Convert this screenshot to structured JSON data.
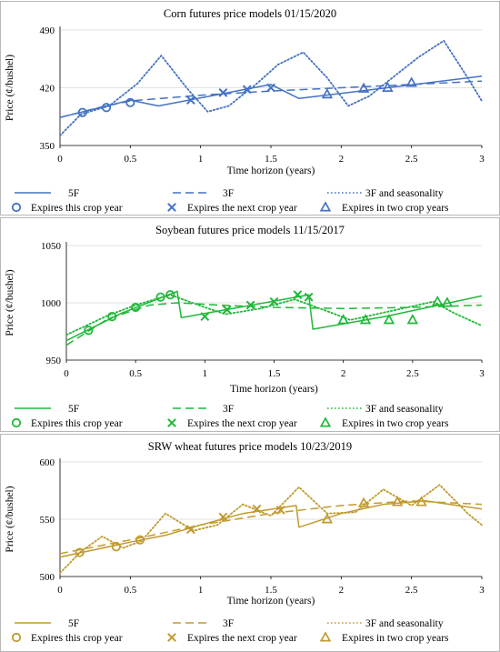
{
  "chart_data": [
    {
      "type": "line",
      "title": "Corn futures price models 01/15/2020",
      "xlabel": "Time horizon (years)",
      "ylabel": "Price (¢/bushel)",
      "xlim": [
        0,
        3
      ],
      "ylim": [
        350,
        490
      ],
      "xticks": [
        "0",
        "0.5",
        "1",
        "1.5",
        "2",
        "2.5",
        "3"
      ],
      "yticks": [
        "350",
        "420",
        "490"
      ],
      "grid": "horizontal",
      "legend": "bottom",
      "color": "#4472c4",
      "series": [
        {
          "name": "5F",
          "style": "solid",
          "x": [
            0,
            0.5,
            0.7,
            1.5,
            1.7,
            3.0
          ],
          "y": [
            384,
            405,
            398,
            424,
            407,
            434
          ]
        },
        {
          "name": "3F",
          "style": "dashed",
          "x": [
            0,
            0.25,
            0.5,
            1.0,
            1.5,
            2.0,
            2.5,
            3.0
          ],
          "y": [
            384,
            395,
            404,
            411,
            416,
            420,
            424,
            428
          ]
        },
        {
          "name": "3F and seasonality",
          "style": "dotted",
          "x": [
            0,
            0.15,
            0.35,
            0.55,
            0.72,
            0.9,
            1.05,
            1.2,
            1.4,
            1.55,
            1.73,
            1.9,
            2.05,
            2.2,
            2.4,
            2.55,
            2.73,
            2.9,
            3.0
          ],
          "y": [
            362,
            388,
            398,
            425,
            459,
            420,
            391,
            398,
            425,
            448,
            463,
            432,
            398,
            410,
            437,
            457,
            477,
            432,
            404
          ]
        },
        {
          "name": "Expires this crop year",
          "marker": "circle",
          "x": [
            0.16,
            0.33,
            0.5
          ],
          "y": [
            390,
            396,
            402
          ]
        },
        {
          "name": "Expires the next crop year",
          "marker": "x",
          "x": [
            0.93,
            1.16,
            1.33,
            1.5
          ],
          "y": [
            405,
            414,
            418,
            420
          ]
        },
        {
          "name": "Expires in two crop years",
          "marker": "triangle",
          "x": [
            1.9,
            2.16,
            2.33,
            2.5
          ],
          "y": [
            412,
            419,
            420,
            426
          ]
        }
      ]
    },
    {
      "type": "line",
      "title": "Soybean futures price models 11/15/2017",
      "xlabel": "Time horizon (years)",
      "ylabel": "Price (¢/bushel)",
      "xlim": [
        0,
        3
      ],
      "ylim": [
        950,
        1050
      ],
      "xticks": [
        "0",
        "0.5",
        "1",
        "1.5",
        "2",
        "2.5",
        "3"
      ],
      "yticks": [
        "950",
        "1000",
        "1050"
      ],
      "grid": "horizontal",
      "legend": "bottom",
      "color": "#1fb838",
      "series": [
        {
          "name": "5F",
          "style": "solid",
          "x": [
            0,
            0.4,
            0.8,
            0.83,
            1.75,
            1.78,
            2.3,
            3.0
          ],
          "y": [
            967,
            991,
            1010,
            987,
            1007,
            977,
            988,
            1006
          ]
        },
        {
          "name": "3F",
          "style": "dashed",
          "x": [
            0,
            0.3,
            0.6,
            0.8,
            1.1,
            1.5,
            2.0,
            2.5,
            3.0
          ],
          "y": [
            963,
            986,
            998,
            1000,
            998,
            996,
            995,
            996,
            998
          ]
        },
        {
          "name": "3F and seasonality",
          "style": "dotted",
          "x": [
            0,
            0.3,
            0.5,
            0.75,
            1.0,
            1.15,
            1.4,
            1.65,
            1.9,
            2.05,
            2.35,
            2.65,
            2.8,
            3.0
          ],
          "y": [
            972,
            989,
            998,
            1007,
            996,
            990,
            995,
            1003,
            992,
            985,
            993,
            1001,
            991,
            980
          ]
        },
        {
          "name": "Expires this crop year",
          "marker": "circle",
          "x": [
            0.16,
            0.33,
            0.5,
            0.68,
            0.75
          ],
          "y": [
            976,
            988,
            996,
            1005,
            1007
          ]
        },
        {
          "name": "Expires the next crop year",
          "marker": "x",
          "x": [
            1.0,
            1.16,
            1.33,
            1.5,
            1.67,
            1.75
          ],
          "y": [
            988,
            994,
            998,
            1001,
            1007,
            1005
          ]
        },
        {
          "name": "Expires in two crop years",
          "marker": "triangle",
          "x": [
            2.0,
            2.16,
            2.33,
            2.5,
            2.68,
            2.75
          ],
          "y": [
            985,
            985,
            985,
            985,
            1001,
            1000
          ]
        }
      ]
    },
    {
      "type": "line",
      "title": "SRW wheat futures price models 10/23/2019",
      "xlabel": "Time horizon (years)",
      "ylabel": "Price (¢/bushel)",
      "xlim": [
        0,
        3
      ],
      "ylim": [
        500,
        600
      ],
      "xticks": [
        "0",
        "0.5",
        "1",
        "1.5",
        "2",
        "2.5",
        "3"
      ],
      "yticks": [
        "500",
        "550",
        "600"
      ],
      "grid": "horizontal",
      "legend": "bottom",
      "color": "#c19a2f",
      "series": [
        {
          "name": "5F",
          "style": "solid",
          "x": [
            0,
            0.5,
            0.75,
            1.0,
            1.3,
            1.68,
            1.7,
            2.0,
            2.3,
            2.6,
            3.0
          ],
          "y": [
            517,
            530,
            536,
            545,
            555,
            562,
            543,
            555,
            563,
            566,
            559
          ]
        },
        {
          "name": "3F",
          "style": "dashed",
          "x": [
            0,
            0.5,
            1.0,
            1.5,
            2.0,
            2.5,
            3.0
          ],
          "y": [
            520,
            532,
            545,
            555,
            562,
            566,
            563
          ]
        },
        {
          "name": "3F and seasonality",
          "style": "dotted",
          "x": [
            0,
            0.15,
            0.3,
            0.45,
            0.58,
            0.75,
            0.95,
            1.12,
            1.3,
            1.5,
            1.7,
            1.9,
            2.1,
            2.3,
            2.5,
            2.7,
            2.9,
            3.0
          ],
          "y": [
            503,
            522,
            535,
            525,
            531,
            555,
            540,
            545,
            563,
            553,
            578,
            555,
            556,
            576,
            562,
            580,
            555,
            545
          ]
        },
        {
          "name": "Expires this crop year",
          "marker": "circle",
          "x": [
            0.14,
            0.4,
            0.57
          ],
          "y": [
            521,
            526,
            532
          ]
        },
        {
          "name": "Expires the next crop year",
          "marker": "x",
          "x": [
            0.93,
            1.16,
            1.4,
            1.57
          ],
          "y": [
            541,
            552,
            559,
            558
          ]
        },
        {
          "name": "Expires in two crop years",
          "marker": "triangle",
          "x": [
            1.9,
            2.16,
            2.4,
            2.57
          ],
          "y": [
            550,
            564,
            565,
            565
          ]
        }
      ]
    }
  ]
}
